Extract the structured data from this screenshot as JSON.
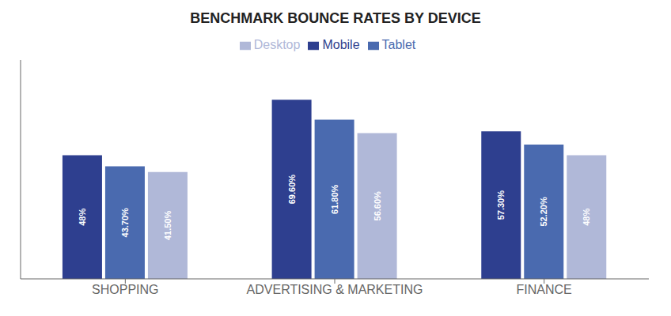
{
  "chart_data": {
    "type": "bar",
    "title": "BENCHMARK BOUNCE RATES BY DEVICE",
    "categories": [
      "SHOPPING",
      "ADVERTISING & MARKETING",
      "FINANCE"
    ],
    "series": [
      {
        "name": "Mobile",
        "color": "#2e3f8f",
        "values": [
          48.0,
          69.6,
          57.3
        ],
        "value_labels": [
          "48%",
          "69.60%",
          "57.30%"
        ]
      },
      {
        "name": "Tablet",
        "color": "#4a6aaf",
        "values": [
          43.7,
          61.8,
          52.2
        ],
        "value_labels": [
          "43.70%",
          "61.80%",
          "52.20%"
        ]
      },
      {
        "name": "Desktop",
        "color": "#b0b8d8",
        "values": [
          41.5,
          56.6,
          48.0
        ],
        "value_labels": [
          "41.50%",
          "56.60%",
          "48%"
        ]
      }
    ],
    "ylim": [
      0,
      85
    ],
    "data_labels": true,
    "tick_labels": "x",
    "legend": "top",
    "grid": false
  }
}
